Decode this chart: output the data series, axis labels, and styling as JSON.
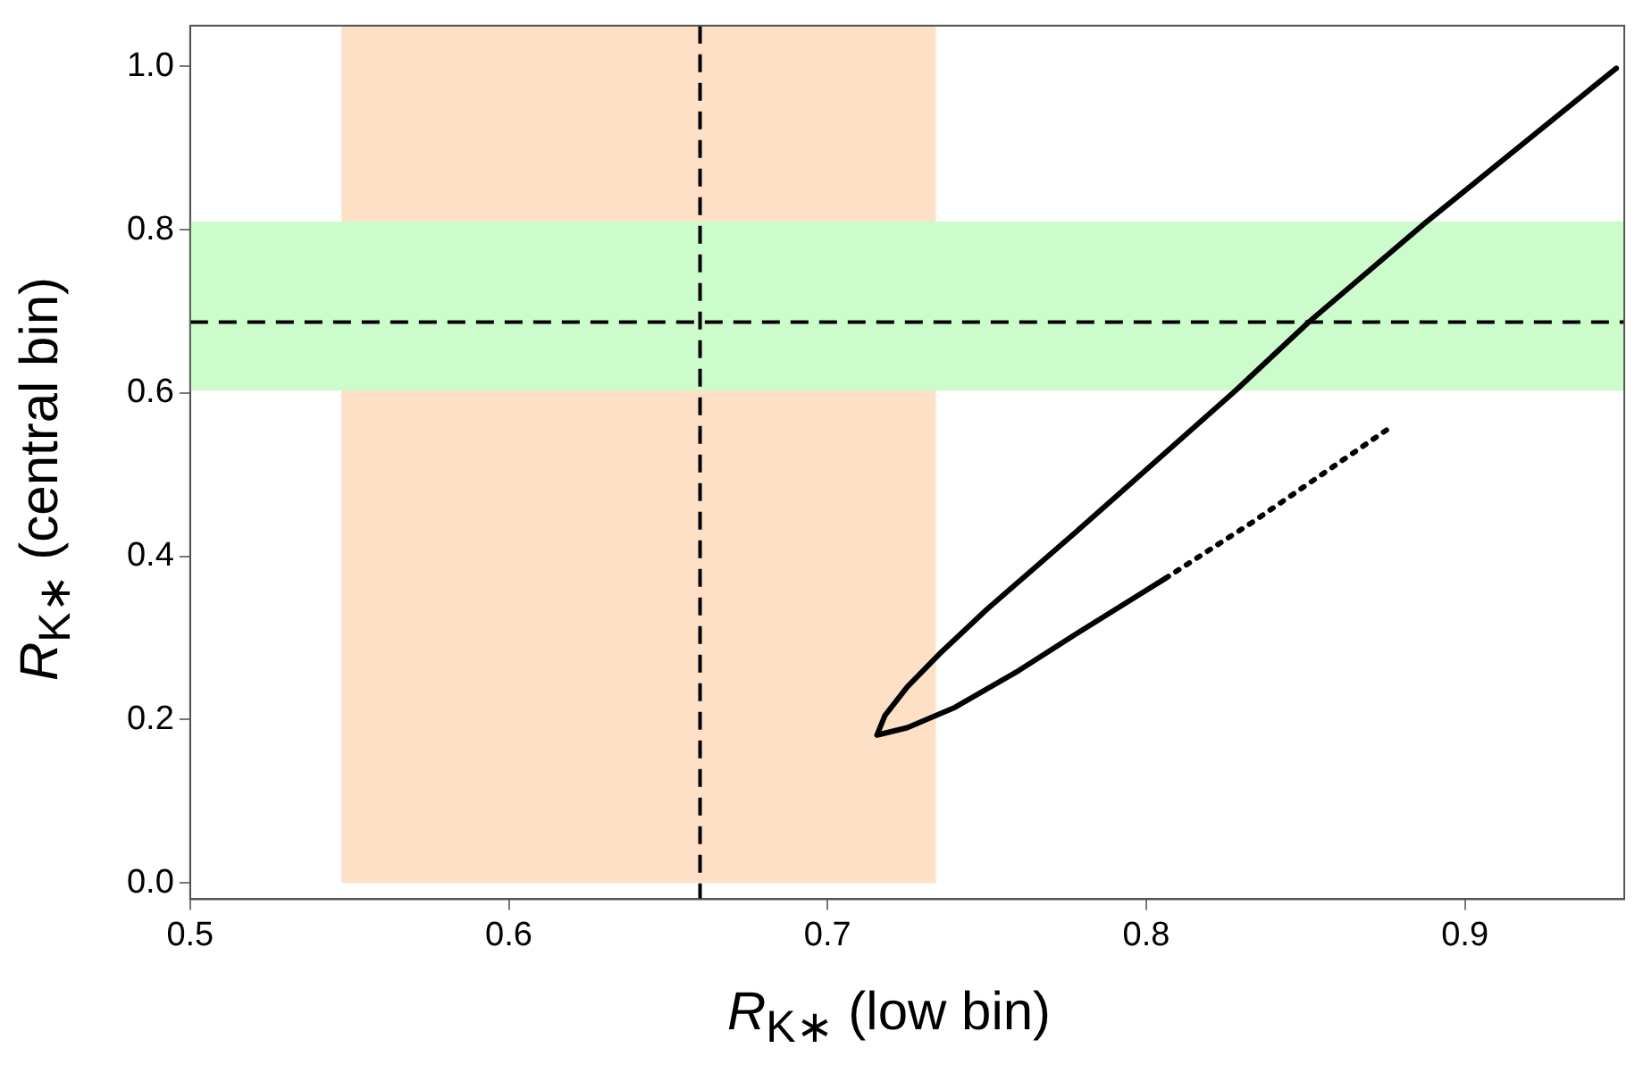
{
  "chart_data": {
    "type": "line",
    "xlabel": "R$_{K∗}$ (low bin)",
    "ylabel": "R$_{K∗}$ (central bin)",
    "xlim": [
      0.5,
      0.95
    ],
    "ylim": [
      -0.02,
      1.05
    ],
    "xticks": [
      0.5,
      0.6,
      0.7,
      0.8,
      0.9
    ],
    "yticks": [
      {
        "value": 0,
        "label": "0.0"
      },
      {
        "value": 0.2,
        "label": "0.2"
      },
      {
        "value": 0.4,
        "label": "0.4"
      },
      {
        "value": 0.6,
        "label": "0.6"
      },
      {
        "value": 0.8,
        "label": "0.8"
      },
      {
        "value": 1,
        "label": "1.0"
      }
    ],
    "series": [
      {
        "color": "#000000",
        "line_style": "solid",
        "x": [
          0.9475,
          0.888,
          0.851,
          0.828,
          0.778,
          0.75,
          0.735,
          0.725,
          0.718,
          0.7155,
          0.725,
          0.74,
          0.76,
          0.778,
          0.806
        ],
        "values": [
          0.998,
          0.81,
          0.687,
          0.603,
          0.43,
          0.335,
          0.28,
          0.24,
          0.205,
          0.181,
          0.19,
          0.215,
          0.26,
          0.305,
          0.373
        ]
      },
      {
        "color": "#000000",
        "line_style": "dotted",
        "x": [
          0.806,
          0.833,
          0.855,
          0.877
        ],
        "values": [
          0.373,
          0.441,
          0.5,
          0.559
        ]
      }
    ],
    "ref_lines": [
      {
        "axis": "x",
        "value": 0.66,
        "color": "#000000",
        "line_style": "dashed"
      },
      {
        "axis": "y",
        "value": 0.687,
        "color": "#000000",
        "line_style": "dashed"
      }
    ],
    "bands": [
      {
        "axis": "x",
        "from": 0.5475,
        "to": 0.734,
        "color": "#fde0c5"
      },
      {
        "axis": "y",
        "from": 0.603,
        "to": 0.81,
        "color": "#ccfccc"
      }
    ],
    "grid": false,
    "legend": false,
    "marker": "none"
  }
}
